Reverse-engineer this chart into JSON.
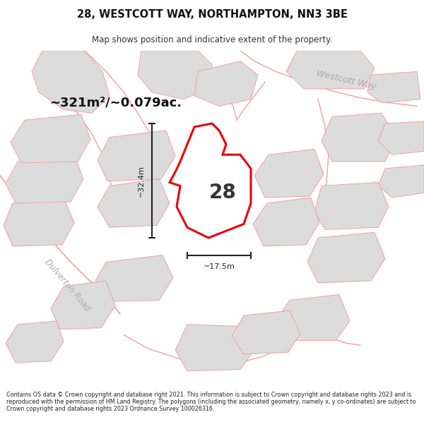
{
  "title": "28, WESTCOTT WAY, NORTHAMPTON, NN3 3BE",
  "subtitle": "Map shows position and indicative extent of the property.",
  "area_text": "~321m²/~0.079ac.",
  "label_28": "28",
  "dim_vertical": "~32.4m",
  "dim_horizontal": "~17.5m",
  "road_label_westcott": "Westcott Way",
  "road_label_dulverton": "Dulverton Road",
  "footer": "Contains OS data © Crown copyright and database right 2021. This information is subject to Crown copyright and database rights 2023 and is reproduced with the permission of HM Land Registry. The polygons (including the associated geometry, namely x, y co-ordinates) are subject to Crown copyright and database rights 2023 Ordnance Survey 100026316.",
  "bg_color": "#ffffff",
  "map_bg": "#ffffff",
  "plot_fill": "#ffffff",
  "plot_stroke": "#e8000a",
  "other_plots_fill": "#dcdcdc",
  "other_plots_stroke": "#f0a0a0",
  "road_stroke": "#f0a0a0",
  "dim_color": "#222222",
  "label_color": "#333333",
  "area_text_color": "#111111",
  "road_label_color": "#aaaaaa"
}
